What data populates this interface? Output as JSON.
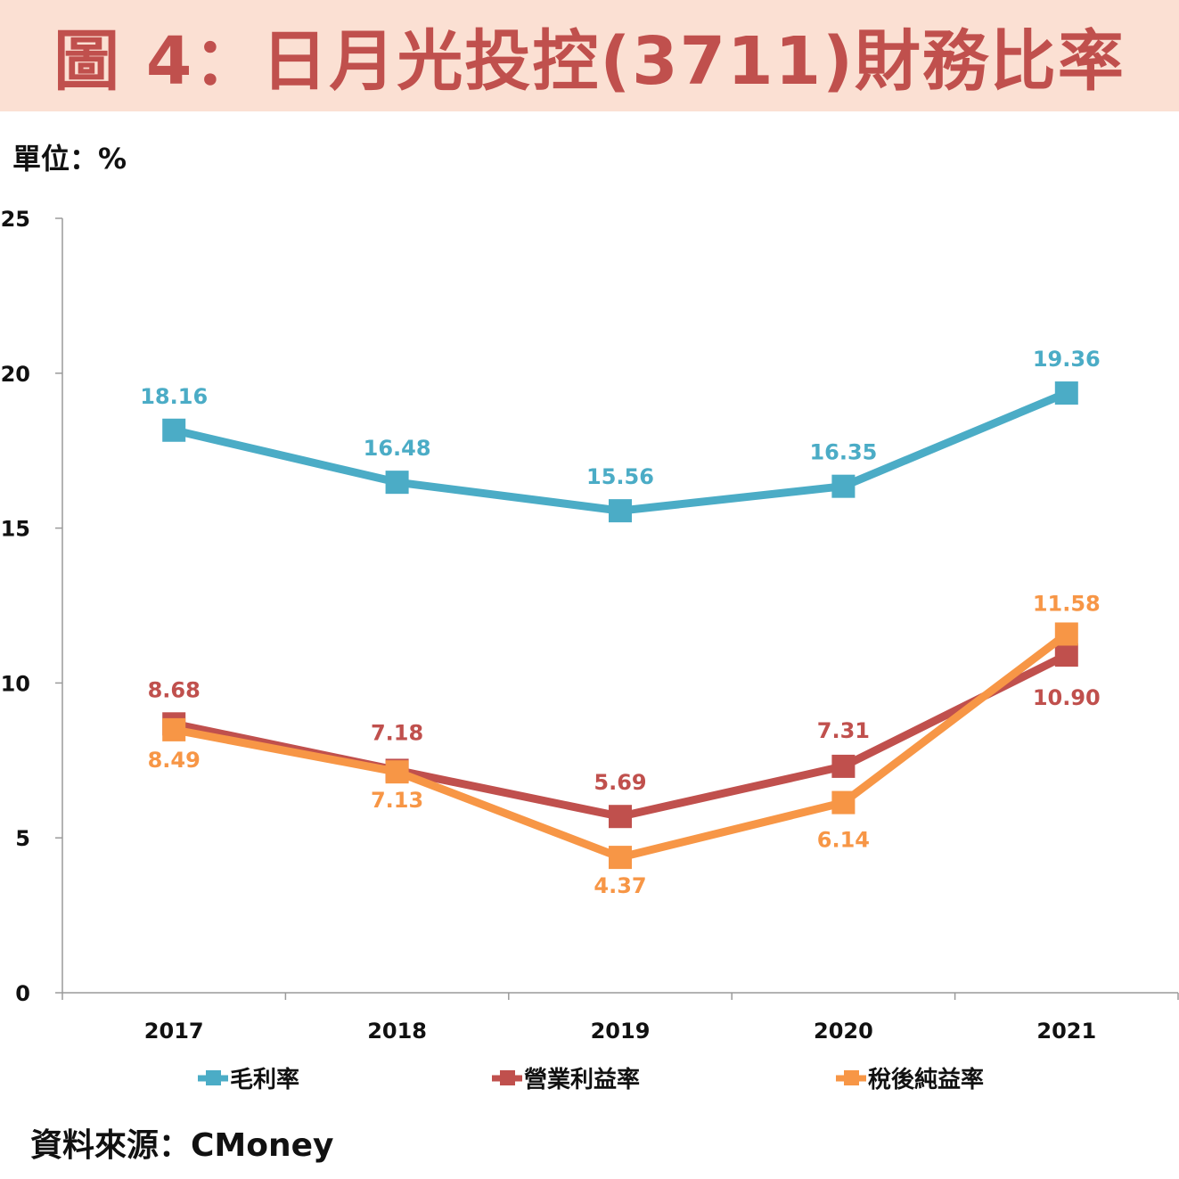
{
  "title": "圖 4：日月光投控(3711)財務比率",
  "unit_label": "單位：%",
  "source": "資料來源：CMoney",
  "chart_data": {
    "type": "line",
    "categories": [
      "2017",
      "2018",
      "2019",
      "2020",
      "2021"
    ],
    "ylim": [
      0,
      25
    ],
    "yticks": [
      0,
      5,
      10,
      15,
      20,
      25
    ],
    "grid": false,
    "legend_position": "bottom",
    "series": [
      {
        "name": "毛利率",
        "color": "#4bacc6",
        "values": [
          18.16,
          16.48,
          15.56,
          16.35,
          19.36
        ],
        "labels": [
          "18.16",
          "16.48",
          "15.56",
          "16.35",
          "19.36"
        ]
      },
      {
        "name": "營業利益率",
        "color": "#c0504d",
        "values": [
          8.68,
          7.18,
          5.69,
          7.31,
          10.9
        ],
        "labels": [
          "8.68",
          "7.18",
          "5.69",
          "7.31",
          "10.90"
        ]
      },
      {
        "name": "稅後純益率",
        "color": "#f79646",
        "values": [
          8.49,
          7.13,
          4.37,
          6.14,
          11.58
        ],
        "labels": [
          "8.49",
          "7.13",
          "4.37",
          "6.14",
          "11.58"
        ]
      }
    ]
  }
}
